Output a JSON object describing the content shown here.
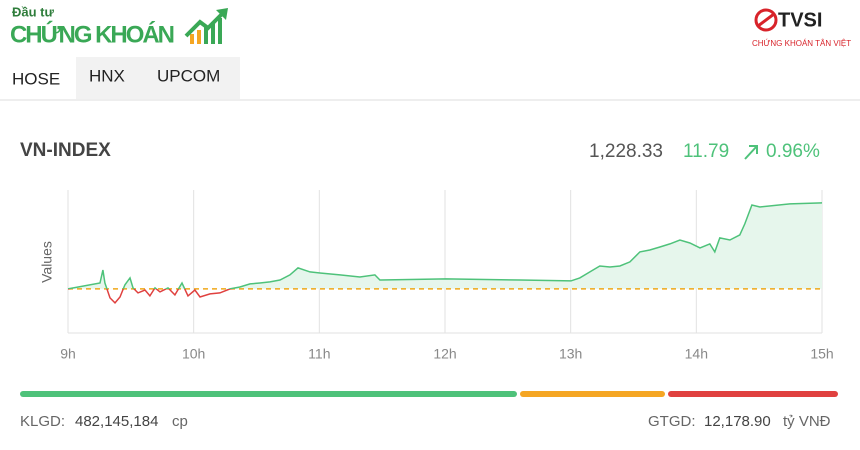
{
  "header": {
    "brand_small": "Đầu tư",
    "brand": "CHỨNG KHOÁN",
    "partner": "TVSI",
    "partner_sub": "CHỨNG KHOÁN TÂN VIỆT"
  },
  "tabs": [
    "HOSE",
    "HNX",
    "UPCOM"
  ],
  "index": {
    "name": "VN-INDEX",
    "price": "1,228.33",
    "change": "11.79",
    "percent": "0.96%"
  },
  "chart_data": {
    "type": "line",
    "y_label": "Values",
    "x": [
      9.0,
      9.255,
      9.278,
      9.294,
      9.334,
      9.374,
      9.414,
      9.453,
      9.493,
      9.517,
      9.557,
      9.613,
      9.652,
      9.692,
      9.732,
      9.796,
      9.851,
      9.907,
      9.955,
      10.01,
      10.05,
      10.13,
      10.209,
      10.289,
      10.368,
      10.448,
      10.527,
      10.607,
      10.687,
      10.766,
      10.83,
      10.926,
      11.005,
      11.164,
      11.323,
      11.442,
      11.482,
      12.007,
      12.596,
      13.002,
      13.073,
      13.153,
      13.232,
      13.312,
      13.392,
      13.471,
      13.551,
      13.63,
      13.71,
      13.79,
      13.869,
      13.949,
      14.029,
      14.107,
      14.147,
      14.187,
      14.267,
      14.346,
      14.386,
      14.442,
      14.506,
      14.744,
      15.0
    ],
    "values": [
      1216.54,
      1217.36,
      1219.14,
      1217.36,
      1215.31,
      1214.62,
      1215.44,
      1217.09,
      1218.05,
      1216.68,
      1215.99,
      1216.4,
      1215.58,
      1216.68,
      1216.13,
      1216.68,
      1215.72,
      1217.36,
      1215.58,
      1216.4,
      1215.44,
      1215.86,
      1215.99,
      1216.54,
      1216.81,
      1217.23,
      1217.36,
      1217.5,
      1217.77,
      1218.46,
      1219.42,
      1218.87,
      1218.73,
      1218.46,
      1218.18,
      1218.46,
      1217.77,
      1217.91,
      1217.77,
      1217.64,
      1218.05,
      1218.87,
      1219.69,
      1219.55,
      1219.69,
      1220.24,
      1221.61,
      1221.88,
      1222.29,
      1222.71,
      1223.25,
      1222.84,
      1222.16,
      1222.71,
      1221.61,
      1223.53,
      1223.25,
      1223.94,
      1225.45,
      1228.05,
      1227.77,
      1228.19,
      1228.33
    ],
    "color": "#4ec27a",
    "down_color": "#e0413f",
    "fill_color": "#e6f6ec",
    "reference": 1216.54,
    "reference_color": "#f0a818",
    "xlim": [
      9,
      15
    ],
    "xticks": [
      {
        "value": 9,
        "label": "9h"
      },
      {
        "value": 10,
        "label": "10h"
      },
      {
        "value": 11,
        "label": "11h"
      },
      {
        "value": 12,
        "label": "12h"
      },
      {
        "value": 13,
        "label": "13h"
      },
      {
        "value": 14,
        "label": "14h"
      },
      {
        "value": 15,
        "label": "15h"
      }
    ],
    "ylim": [
      1210.5,
      1230.1
    ],
    "grid": true
  },
  "breadth": [
    {
      "value": 497,
      "color": "#4ec27a"
    },
    {
      "value": 145,
      "color": "#f5a623"
    },
    {
      "value": 170,
      "color": "#e0413f"
    }
  ],
  "footer": {
    "volume_label": "KLGD:",
    "volume": "482,145,184",
    "volume_unit": "cp",
    "value_label": "GTGD:",
    "value": "12,178.90",
    "value_unit": "tỷ VNĐ"
  }
}
